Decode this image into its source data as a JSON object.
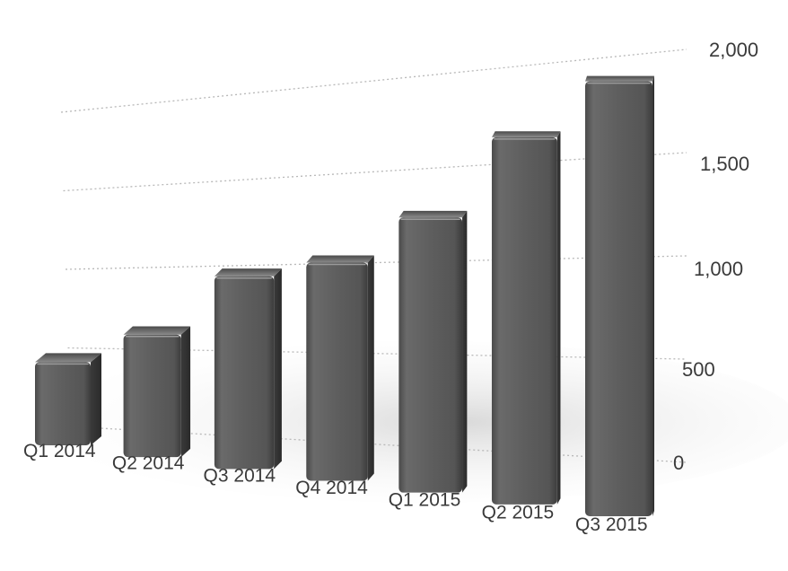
{
  "chart_data": {
    "type": "bar",
    "categories": [
      "Q1 2014",
      "Q2 2014",
      "Q3 2014",
      "Q4 2014",
      "Q1 2015",
      "Q2 2015",
      "Q3 2015"
    ],
    "values": [
      490,
      690,
      1040,
      1130,
      1370,
      1760,
      2010
    ],
    "y_ticks": [
      "0",
      "500",
      "1,000",
      "1,500",
      "2,000"
    ],
    "y_tick_values": [
      0,
      500,
      1000,
      1500,
      2000
    ],
    "ylim": [
      0,
      2000
    ],
    "grid": "dotted horizontal",
    "bar_color": "#5a5a5a",
    "bar_style": "3d-perspective"
  }
}
